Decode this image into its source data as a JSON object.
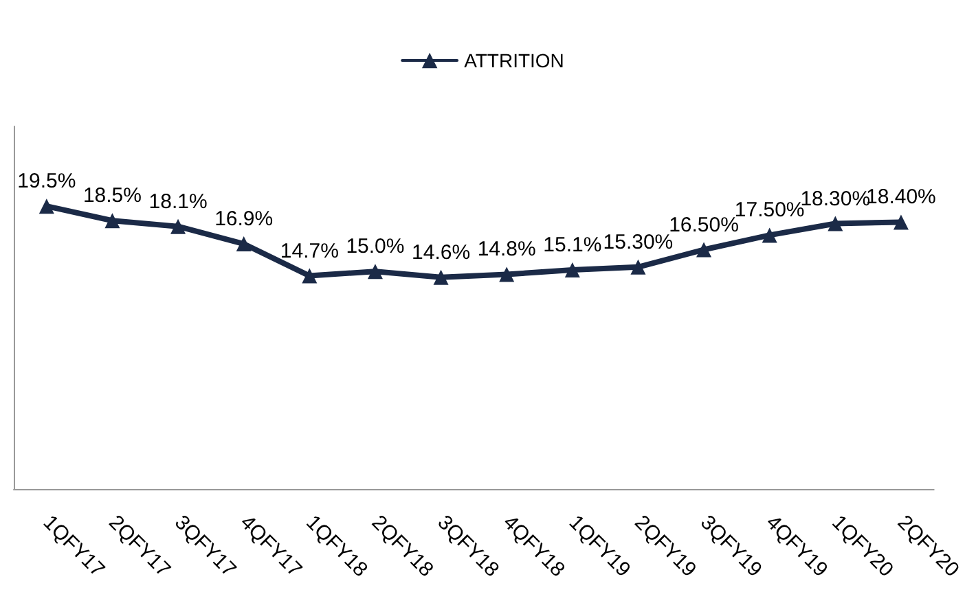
{
  "chart_data": {
    "type": "line",
    "categories": [
      "1QFY17",
      "2QFY17",
      "3QFY17",
      "4QFY17",
      "1QFY18",
      "2QFY18",
      "3QFY18",
      "4QFY18",
      "1QFY19",
      "2QFY19",
      "3QFY19",
      "4QFY19",
      "1QFY20",
      "2QFY20"
    ],
    "series": [
      {
        "name": "ATTRITION",
        "color": "#1b2a47",
        "values": [
          19.5,
          18.5,
          18.1,
          16.9,
          14.7,
          15.0,
          14.6,
          14.8,
          15.1,
          15.3,
          16.5,
          17.5,
          18.3,
          18.4
        ],
        "value_labels": [
          "19.5%",
          "18.5%",
          "18.1%",
          "16.9%",
          "14.7%",
          "15.0%",
          "14.6%",
          "14.8%",
          "15.1%",
          "15.30%",
          "16.50%",
          "17.50%",
          "18.30%",
          "18.40%"
        ]
      }
    ],
    "ylim": [
      0,
      25
    ],
    "tick_labels": "x",
    "grid": false,
    "legend": "top",
    "marker": "triangle",
    "line_style": "solid"
  }
}
